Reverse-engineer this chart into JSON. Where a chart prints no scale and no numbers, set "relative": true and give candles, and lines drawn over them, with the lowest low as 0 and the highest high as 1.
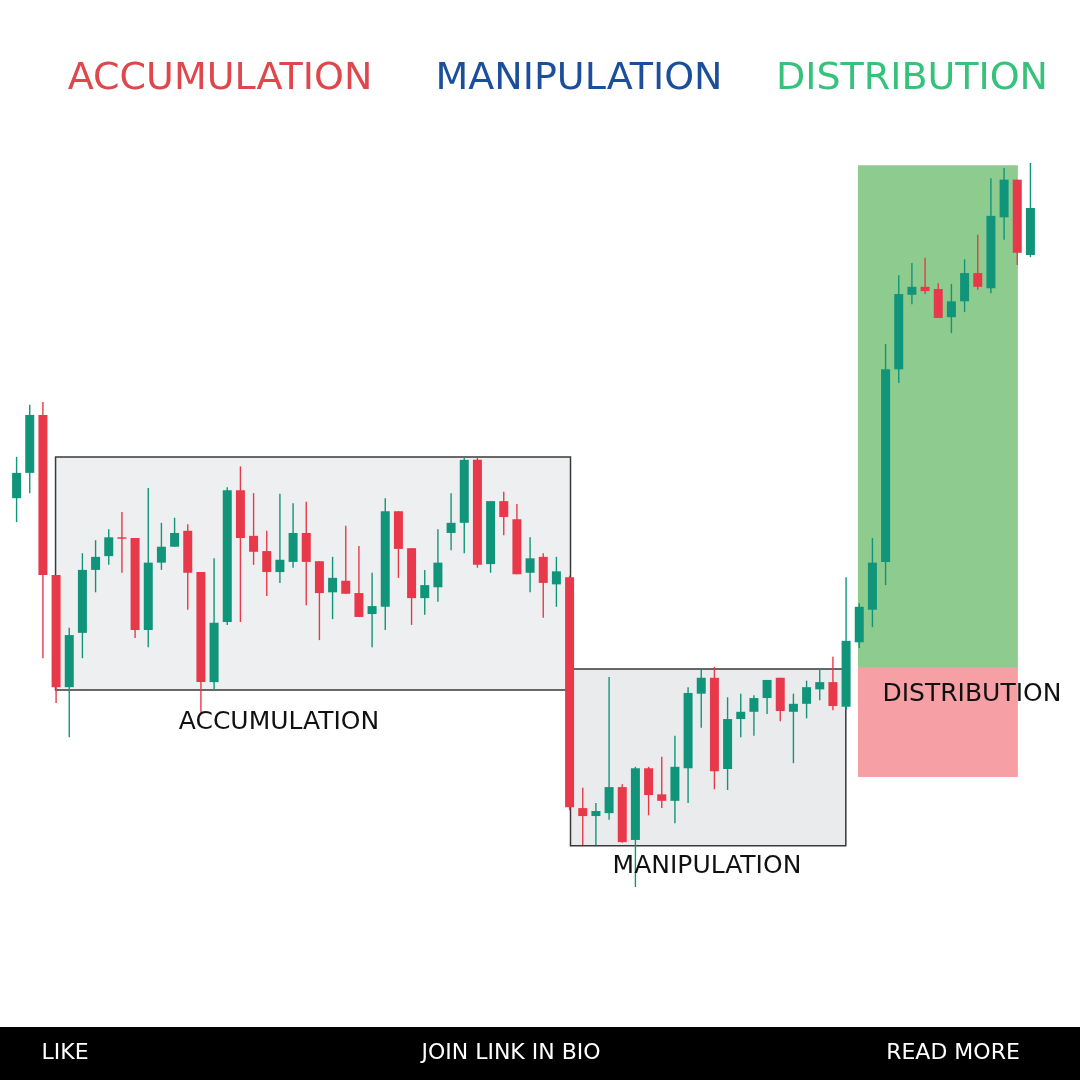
{
  "chart_data": {
    "type": "candlestick",
    "relative": true,
    "categories": [
      null,
      null,
      null,
      null,
      null,
      null,
      null,
      null,
      null,
      null,
      null,
      null,
      null,
      null,
      null,
      null,
      null,
      null,
      null,
      null,
      null,
      null,
      null,
      null,
      null,
      null,
      null,
      null,
      null,
      null,
      null,
      null,
      null,
      null,
      null,
      null,
      null,
      null,
      null,
      null,
      null,
      null,
      null,
      null,
      null,
      null,
      null,
      null,
      null,
      null,
      null,
      null,
      null,
      null,
      null,
      null,
      null,
      null,
      null,
      null,
      null,
      null,
      null,
      null,
      null,
      null,
      null,
      null,
      null,
      null,
      null,
      null,
      null,
      null,
      null,
      null,
      null,
      null
    ],
    "ohlc": [
      [
        0.537,
        0.594,
        0.504,
        0.572
      ],
      [
        0.572,
        0.666,
        0.544,
        0.652
      ],
      [
        0.652,
        0.67,
        0.316,
        0.431
      ],
      [
        0.431,
        0.431,
        0.254,
        0.276
      ],
      [
        0.276,
        0.358,
        0.207,
        0.348
      ],
      [
        0.351,
        0.461,
        0.316,
        0.438
      ],
      [
        0.438,
        0.479,
        0.407,
        0.456
      ],
      [
        0.457,
        0.494,
        0.445,
        0.483
      ],
      [
        0.483,
        0.518,
        0.434,
        0.481
      ],
      [
        0.482,
        0.482,
        0.344,
        0.355
      ],
      [
        0.355,
        0.551,
        0.331,
        0.448
      ],
      [
        0.448,
        0.503,
        0.438,
        0.47
      ],
      [
        0.47,
        0.51,
        0.47,
        0.489
      ],
      [
        0.492,
        0.501,
        0.383,
        0.434
      ],
      [
        0.435,
        0.435,
        0.24,
        0.283
      ],
      [
        0.283,
        0.454,
        0.272,
        0.365
      ],
      [
        0.366,
        0.552,
        0.362,
        0.548
      ],
      [
        0.548,
        0.581,
        0.366,
        0.482
      ],
      [
        0.485,
        0.544,
        0.445,
        0.463
      ],
      [
        0.464,
        0.492,
        0.402,
        0.435
      ],
      [
        0.435,
        0.543,
        0.42,
        0.452
      ],
      [
        0.449,
        0.53,
        0.441,
        0.489
      ],
      [
        0.489,
        0.532,
        0.389,
        0.449
      ],
      [
        0.45,
        0.45,
        0.341,
        0.406
      ],
      [
        0.407,
        0.456,
        0.37,
        0.427
      ],
      [
        0.423,
        0.499,
        0.405,
        0.405
      ],
      [
        0.406,
        0.471,
        0.373,
        0.373
      ],
      [
        0.377,
        0.434,
        0.331,
        0.388
      ],
      [
        0.387,
        0.537,
        0.355,
        0.519
      ],
      [
        0.519,
        0.519,
        0.427,
        0.467
      ],
      [
        0.468,
        0.468,
        0.362,
        0.399
      ],
      [
        0.399,
        0.438,
        0.376,
        0.417
      ],
      [
        0.414,
        0.494,
        0.394,
        0.448
      ],
      [
        0.489,
        0.544,
        0.465,
        0.503
      ],
      [
        0.503,
        0.594,
        0.461,
        0.59
      ],
      [
        0.59,
        0.593,
        0.441,
        0.445
      ],
      [
        0.446,
        0.533,
        0.434,
        0.533
      ],
      [
        0.533,
        0.546,
        0.486,
        0.511
      ],
      [
        0.508,
        0.529,
        0.432,
        0.432
      ],
      [
        0.434,
        0.483,
        0.407,
        0.454
      ],
      [
        0.456,
        0.461,
        0.372,
        0.42
      ],
      [
        0.418,
        0.456,
        0.387,
        0.436
      ],
      [
        0.428,
        0.43,
        0.106,
        0.11
      ],
      [
        0.109,
        0.137,
        0.058,
        0.098
      ],
      [
        0.098,
        0.116,
        0.058,
        0.105
      ],
      [
        0.102,
        0.29,
        0.093,
        0.138
      ],
      [
        0.138,
        0.142,
        0.061,
        0.062
      ],
      [
        0.065,
        0.166,
        0,
        0.164
      ],
      [
        0.164,
        0.166,
        0.099,
        0.127
      ],
      [
        0.128,
        0.18,
        0.109,
        0.119
      ],
      [
        0.119,
        0.209,
        0.088,
        0.166
      ],
      [
        0.164,
        0.276,
        0.116,
        0.268
      ],
      [
        0.267,
        0.302,
        0.22,
        0.289
      ],
      [
        0.289,
        0.304,
        0.135,
        0.16
      ],
      [
        0.163,
        0.262,
        0.134,
        0.232
      ],
      [
        0.232,
        0.267,
        0.207,
        0.242
      ],
      [
        0.242,
        0.265,
        0.209,
        0.261
      ],
      [
        0.261,
        0.286,
        0.239,
        0.286
      ],
      [
        0.289,
        0.289,
        0.229,
        0.243
      ],
      [
        0.242,
        0.267,
        0.171,
        0.253
      ],
      [
        0.253,
        0.285,
        0.233,
        0.276
      ],
      [
        0.273,
        0.302,
        0.258,
        0.283
      ],
      [
        0.283,
        0.318,
        0.244,
        0.25
      ],
      [
        0.249,
        0.428,
        0.244,
        0.34
      ],
      [
        0.338,
        0.392,
        0.33,
        0.387
      ],
      [
        0.383,
        0.482,
        0.359,
        0.448
      ],
      [
        0.449,
        0.75,
        0.417,
        0.715
      ],
      [
        0.715,
        0.845,
        0.696,
        0.819
      ],
      [
        0.818,
        0.862,
        0.805,
        0.829
      ],
      [
        0.829,
        0.869,
        0.819,
        0.823
      ],
      [
        0.826,
        0.834,
        0.786,
        0.786
      ],
      [
        0.787,
        0.833,
        0.765,
        0.809
      ],
      [
        0.809,
        0.867,
        0.794,
        0.848
      ],
      [
        0.848,
        0.901,
        0.825,
        0.829
      ],
      [
        0.827,
        0.979,
        0.82,
        0.927
      ],
      [
        0.925,
        0.993,
        0.894,
        0.977
      ],
      [
        0.977,
        0.977,
        0.859,
        0.876
      ],
      [
        0.873,
        1,
        0.87,
        0.938
      ]
    ],
    "colors": [
      "#11957a",
      "#11957a",
      "#e8394b",
      "#e8394b",
      "#11957a",
      "#11957a",
      "#11957a",
      "#11957a",
      "#e8394b",
      "#e8394b",
      "#11957a",
      "#11957a",
      "#11957a",
      "#e8394b",
      "#e8394b",
      "#11957a",
      "#11957a",
      "#e8394b",
      "#e8394b",
      "#e8394b",
      "#11957a",
      "#11957a",
      "#e8394b",
      "#e8394b",
      "#11957a",
      "#e8394b",
      "#e8394b",
      "#11957a",
      "#11957a",
      "#e8394b",
      "#e8394b",
      "#11957a",
      "#11957a",
      "#11957a",
      "#11957a",
      "#e8394b",
      "#11957a",
      "#e8394b",
      "#e8394b",
      "#11957a",
      "#e8394b",
      "#11957a",
      "#e8394b",
      "#e8394b",
      "#11957a",
      "#11957a",
      "#e8394b",
      "#11957a",
      "#e8394b",
      "#e8394b",
      "#11957a",
      "#11957a",
      "#11957a",
      "#e8394b",
      "#11957a",
      "#11957a",
      "#11957a",
      "#11957a",
      "#e8394b",
      "#11957a",
      "#11957a",
      "#11957a",
      "#e8394b",
      "#11957a",
      "#11957a",
      "#11957a",
      "#11957a",
      "#11957a",
      "#11957a",
      "#e8394b",
      "#e8394b",
      "#11957a",
      "#11957a",
      "#e8394b",
      "#11957a",
      "#11957a",
      "#e8394b",
      "#11957a"
    ],
    "bands": [
      {
        "axis": "y",
        "from": 0.272,
        "to": 0.594,
        "label": "ACCUMULATION",
        "color": "#eeeff1"
      },
      {
        "axis": "y",
        "from": 0.057,
        "to": 0.301,
        "label": "MANIPULATION",
        "color": "#eaebed"
      },
      {
        "axis": "y",
        "from": 0.302,
        "to": 0.996,
        "color": "#8ecb8e"
      },
      {
        "axis": "y",
        "from": 0.153,
        "to": 0.302,
        "label": "DISTRIBUTION",
        "color": "#f6a0a6"
      }
    ],
    "annotations": [
      "ACCUMULATION",
      "MANIPULATION",
      "DISTRIBUTION",
      "LIKE",
      "JOIN LINK IN BIO",
      "READ MORE"
    ]
  }
}
